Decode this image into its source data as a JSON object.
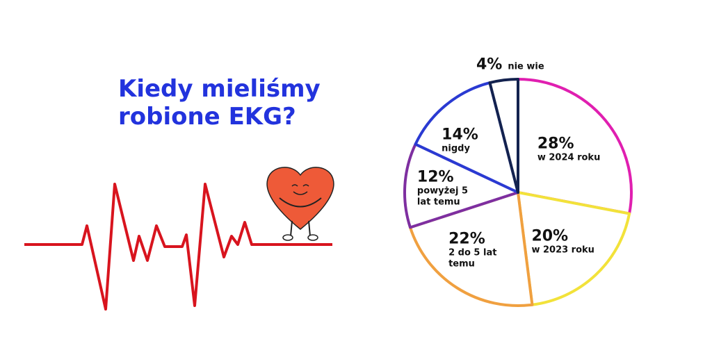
{
  "chart_data": {
    "type": "pie",
    "title": "Kiedy mieliśmy robione EKG?",
    "categories": [
      "w 2024 roku",
      "w 2023 roku",
      "2 do 5 lat temu",
      "powyżej 5 lat temu",
      "nigdy",
      "nie wie"
    ],
    "values": [
      28,
      20,
      22,
      12,
      14,
      4
    ],
    "value_labels": [
      "28%",
      "20%",
      "22%",
      "12%",
      "14%",
      "4%"
    ],
    "colors": [
      "#e01fb0",
      "#f2e23a",
      "#f0a040",
      "#7e2fa0",
      "#2a3ad2",
      "#13224f"
    ]
  }
}
